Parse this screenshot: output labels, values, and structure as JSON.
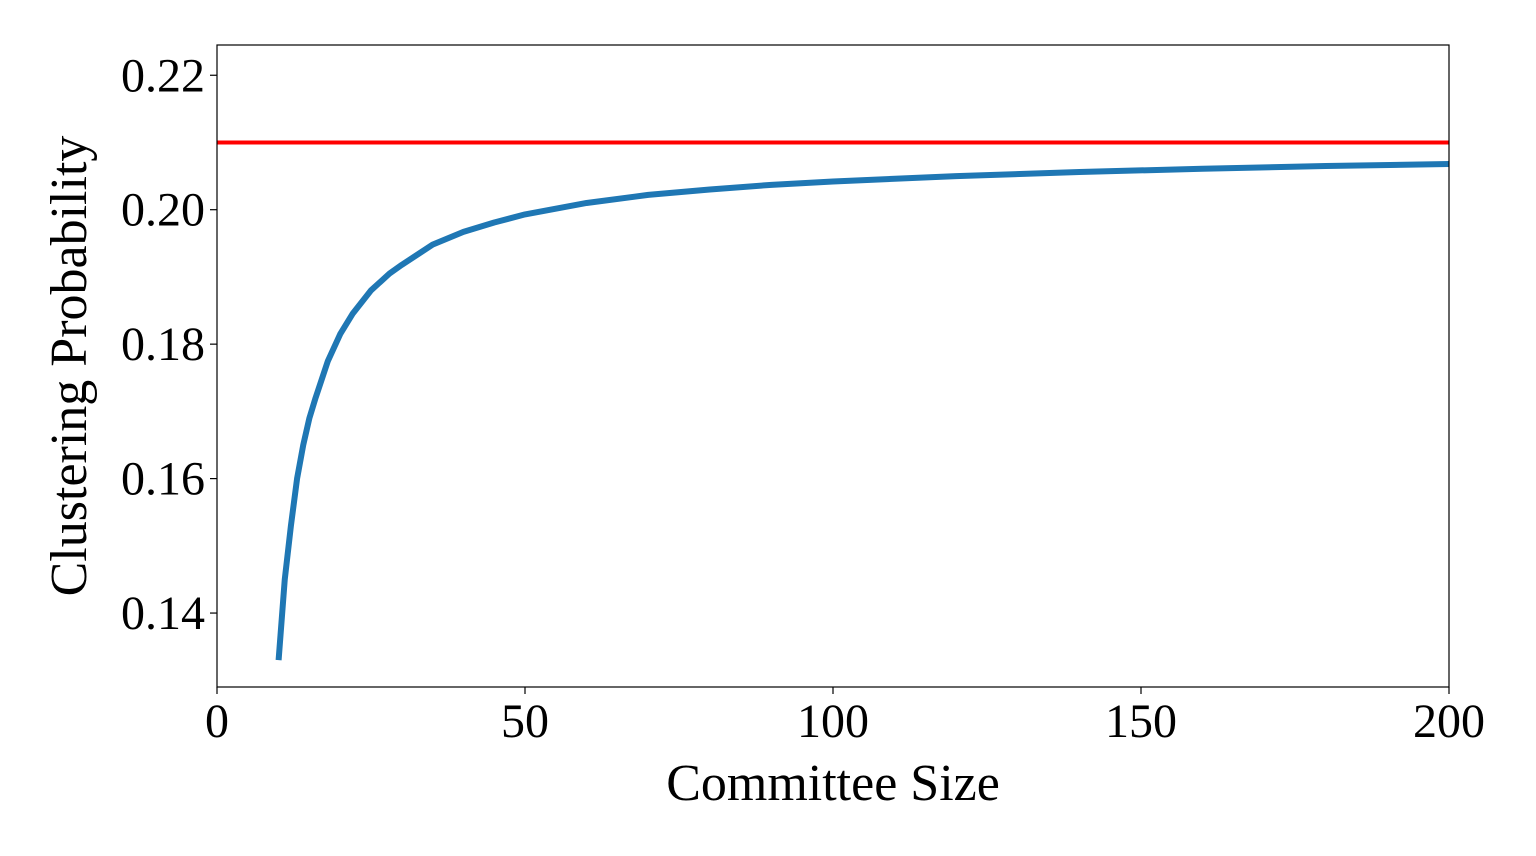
{
  "chart_data": {
    "type": "line",
    "title": "",
    "xlabel": "Committee Size",
    "ylabel": "Clustering Probability",
    "xlim": [
      0,
      200
    ],
    "ylim": [
      0.129,
      0.2245
    ],
    "xticks": [
      0,
      50,
      100,
      150,
      200
    ],
    "xtick_labels": [
      "0",
      "50",
      "100",
      "150",
      "200"
    ],
    "yticks": [
      0.14,
      0.16,
      0.18,
      0.2,
      0.22
    ],
    "ytick_labels": [
      "0.14",
      "0.16",
      "0.18",
      "0.20",
      "0.22"
    ],
    "grid": false,
    "legend": "none",
    "series": [
      {
        "color": "#1f77b4",
        "x": [
          10,
          11,
          12,
          13,
          14,
          15,
          16,
          18,
          20,
          22,
          25,
          28,
          30,
          35,
          40,
          45,
          50,
          60,
          70,
          80,
          90,
          100,
          120,
          140,
          160,
          180,
          200
        ],
        "y": [
          0.133,
          0.145,
          0.153,
          0.16,
          0.165,
          0.169,
          0.172,
          0.1775,
          0.1815,
          0.1845,
          0.188,
          0.1905,
          0.1918,
          0.1948,
          0.1967,
          0.1981,
          0.1993,
          0.201,
          0.2022,
          0.203,
          0.2037,
          0.2042,
          0.205,
          0.2056,
          0.2061,
          0.2065,
          0.2068
        ]
      },
      {
        "color": "#ff0000",
        "x": [
          0,
          200
        ],
        "y": [
          0.21,
          0.21
        ]
      }
    ]
  }
}
